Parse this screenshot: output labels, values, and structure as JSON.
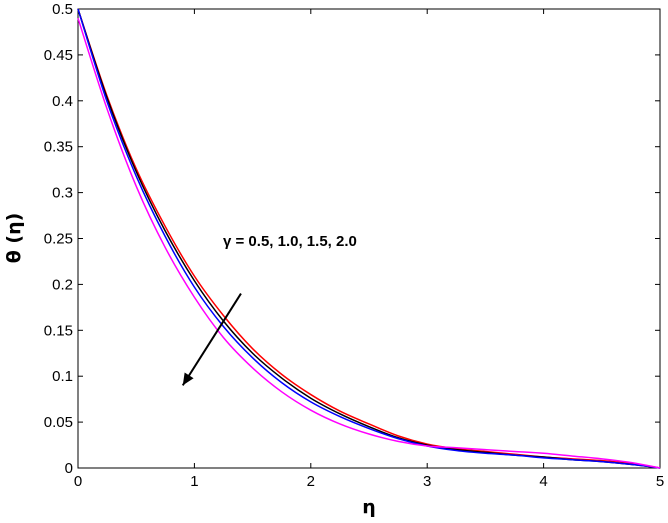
{
  "chart_data": {
    "type": "line",
    "xlabel": "η",
    "ylabel": "θ (η)",
    "xlim": [
      0,
      5
    ],
    "ylim": [
      0,
      0.5
    ],
    "x_ticks": [
      0,
      1,
      2,
      3,
      4,
      5
    ],
    "x_tick_labels": [
      "0",
      "1",
      "2",
      "3",
      "4",
      "5"
    ],
    "y_ticks": [
      0,
      0.05,
      0.1,
      0.15,
      0.2,
      0.25,
      0.3,
      0.35,
      0.4,
      0.45,
      0.5
    ],
    "y_tick_labels": [
      "0",
      "0.05",
      "0.1",
      "0.15",
      "0.2",
      "0.25",
      "0.3",
      "0.35",
      "0.4",
      "0.45",
      "0.5"
    ],
    "grid": false,
    "legend": "none",
    "annotation": {
      "text": "γ = 0.5, 1.0, 1.5, 2.0",
      "arrow_from": [
        1.4,
        0.19
      ],
      "arrow_to": [
        0.9,
        0.09
      ]
    },
    "x": [
      0,
      0.25,
      0.5,
      0.75,
      1.0,
      1.25,
      1.5,
      1.75,
      2.0,
      2.25,
      2.5,
      2.75,
      3.0,
      3.25,
      3.5,
      3.75,
      4.0,
      4.25,
      4.5,
      4.75,
      5.0
    ],
    "series": [
      {
        "color": "#ff0000",
        "values": [
          0.5,
          0.405,
          0.326,
          0.263,
          0.209,
          0.166,
          0.13,
          0.102,
          0.08,
          0.062,
          0.048,
          0.035,
          0.026,
          0.021,
          0.018,
          0.015,
          0.012,
          0.01,
          0.008,
          0.005,
          0.0
        ]
      },
      {
        "color": "#000000",
        "values": [
          0.5,
          0.403,
          0.323,
          0.258,
          0.204,
          0.16,
          0.125,
          0.098,
          0.076,
          0.059,
          0.045,
          0.033,
          0.025,
          0.02,
          0.017,
          0.014,
          0.012,
          0.009,
          0.007,
          0.004,
          0.0
        ]
      },
      {
        "color": "#0000ff",
        "values": [
          0.5,
          0.399,
          0.318,
          0.252,
          0.197,
          0.154,
          0.12,
          0.093,
          0.072,
          0.056,
          0.043,
          0.032,
          0.024,
          0.019,
          0.016,
          0.014,
          0.011,
          0.009,
          0.007,
          0.004,
          0.0
        ]
      },
      {
        "color": "#ff00ff",
        "values": [
          0.49,
          0.391,
          0.307,
          0.24,
          0.186,
          0.142,
          0.109,
          0.083,
          0.063,
          0.048,
          0.037,
          0.029,
          0.024,
          0.022,
          0.02,
          0.018,
          0.016,
          0.013,
          0.01,
          0.006,
          0.0
        ]
      }
    ]
  }
}
